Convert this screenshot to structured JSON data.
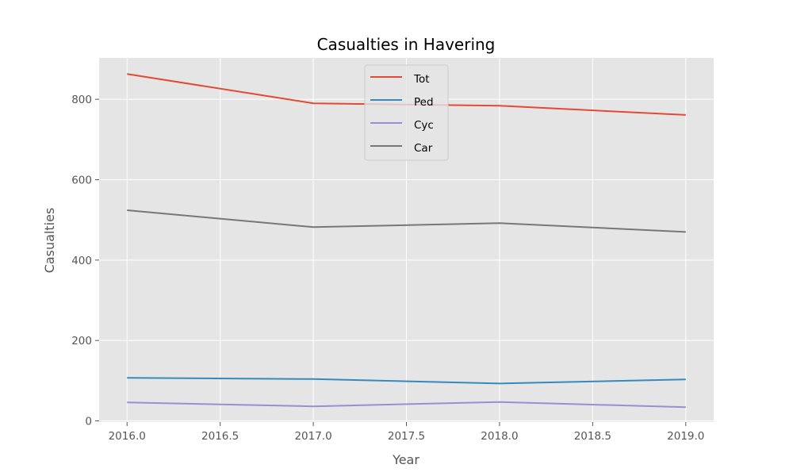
{
  "chart_data": {
    "type": "line",
    "title": "Casualties in Havering",
    "xlabel": "Year",
    "ylabel": "Casualties",
    "x": [
      2016,
      2017,
      2018,
      2019
    ],
    "xlim": [
      2015.85,
      2019.15
    ],
    "ylim": [
      -3,
      903
    ],
    "xticks": [
      2016.0,
      2016.5,
      2017.0,
      2017.5,
      2018.0,
      2018.5,
      2019.0
    ],
    "xtick_labels": [
      "2016.0",
      "2016.5",
      "2017.0",
      "2017.5",
      "2018.0",
      "2018.5",
      "2019.0"
    ],
    "yticks": [
      0,
      200,
      400,
      600,
      800
    ],
    "ytick_labels": [
      "0",
      "200",
      "400",
      "600",
      "800"
    ],
    "grid": true,
    "legend_position": "top-center",
    "background": "#e5e5e5",
    "series": [
      {
        "name": "Tot",
        "color": "#e24a33",
        "values": [
          863,
          790,
          784,
          761
        ]
      },
      {
        "name": "Ped",
        "color": "#348abd",
        "values": [
          107,
          104,
          93,
          103
        ]
      },
      {
        "name": "Cyc",
        "color": "#988ed5",
        "values": [
          46,
          36,
          47,
          34
        ]
      },
      {
        "name": "Car",
        "color": "#777777",
        "values": [
          524,
          482,
          492,
          470
        ]
      }
    ]
  }
}
